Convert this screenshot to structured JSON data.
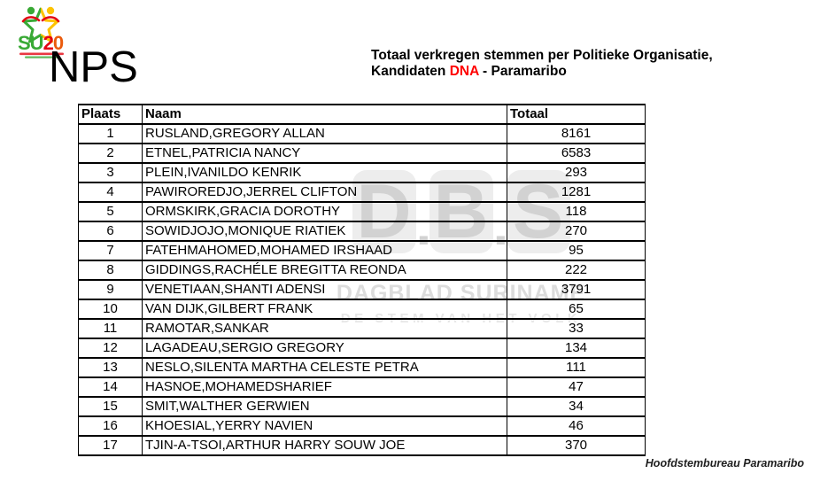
{
  "logo": {
    "text_su": "SU",
    "text_2": "2",
    "text_0": "0",
    "colors": {
      "green": "#39a935",
      "yellow": "#fdc300",
      "red": "#e30613",
      "orange": "#ea5b0c"
    }
  },
  "party_name": "NPS",
  "title": {
    "line1": "Totaal verkregen stemmen per Politieke Organisatie,",
    "line2_prefix": "Kandidaten ",
    "line2_highlight": "DNA",
    "line2_suffix": " - Paramaribo",
    "highlight_color": "#ff0000"
  },
  "watermark": {
    "letters": [
      "D",
      "B",
      "S"
    ],
    "separator": ".",
    "subtitle": "DAGBLAD SURINAME",
    "tagline": "DE STEM VAN HET VOLK"
  },
  "table": {
    "headers": [
      "Plaats",
      "Naam",
      "Totaal"
    ],
    "rows": [
      [
        "1",
        "RUSLAND,GREGORY ALLAN",
        "8161"
      ],
      [
        "2",
        "ETNEL,PATRICIA NANCY",
        "6583"
      ],
      [
        "3",
        "PLEIN,IVANILDO KENRIK",
        "293"
      ],
      [
        "4",
        "PAWIROREDJO,JERREL CLIFTON",
        "1281"
      ],
      [
        "5",
        "ORMSKIRK,GRACIA DOROTHY",
        "118"
      ],
      [
        "6",
        "SOWIDJOJO,MONIQUE RIATIEK",
        "270"
      ],
      [
        "7",
        "FATEHMAHOMED,MOHAMED IRSHAAD",
        "95"
      ],
      [
        "8",
        "GIDDINGS,RACHÉLE BREGITTA REONDA",
        "222"
      ],
      [
        "9",
        "VENETIAAN,SHANTI ADENSI",
        "3791"
      ],
      [
        "10",
        "VAN DIJK,GILBERT FRANK",
        "65"
      ],
      [
        "11",
        "RAMOTAR,SANKAR",
        "33"
      ],
      [
        "12",
        "LAGADEAU,SERGIO GREGORY",
        "134"
      ],
      [
        "13",
        "NESLO,SILENTA MARTHA CELESTE PETRA",
        "111"
      ],
      [
        "14",
        "HASNOE,MOHAMEDSHARIEF",
        "47"
      ],
      [
        "15",
        "SMIT,WALTHER GERWIEN",
        "34"
      ],
      [
        "16",
        "KHOESIAL,YERRY NAVIEN",
        "46"
      ],
      [
        "17",
        "TJIN-A-TSOI,ARTHUR HARRY SOUW JOE",
        "370"
      ]
    ]
  },
  "footer": "Hoofdstembureau Paramaribo"
}
